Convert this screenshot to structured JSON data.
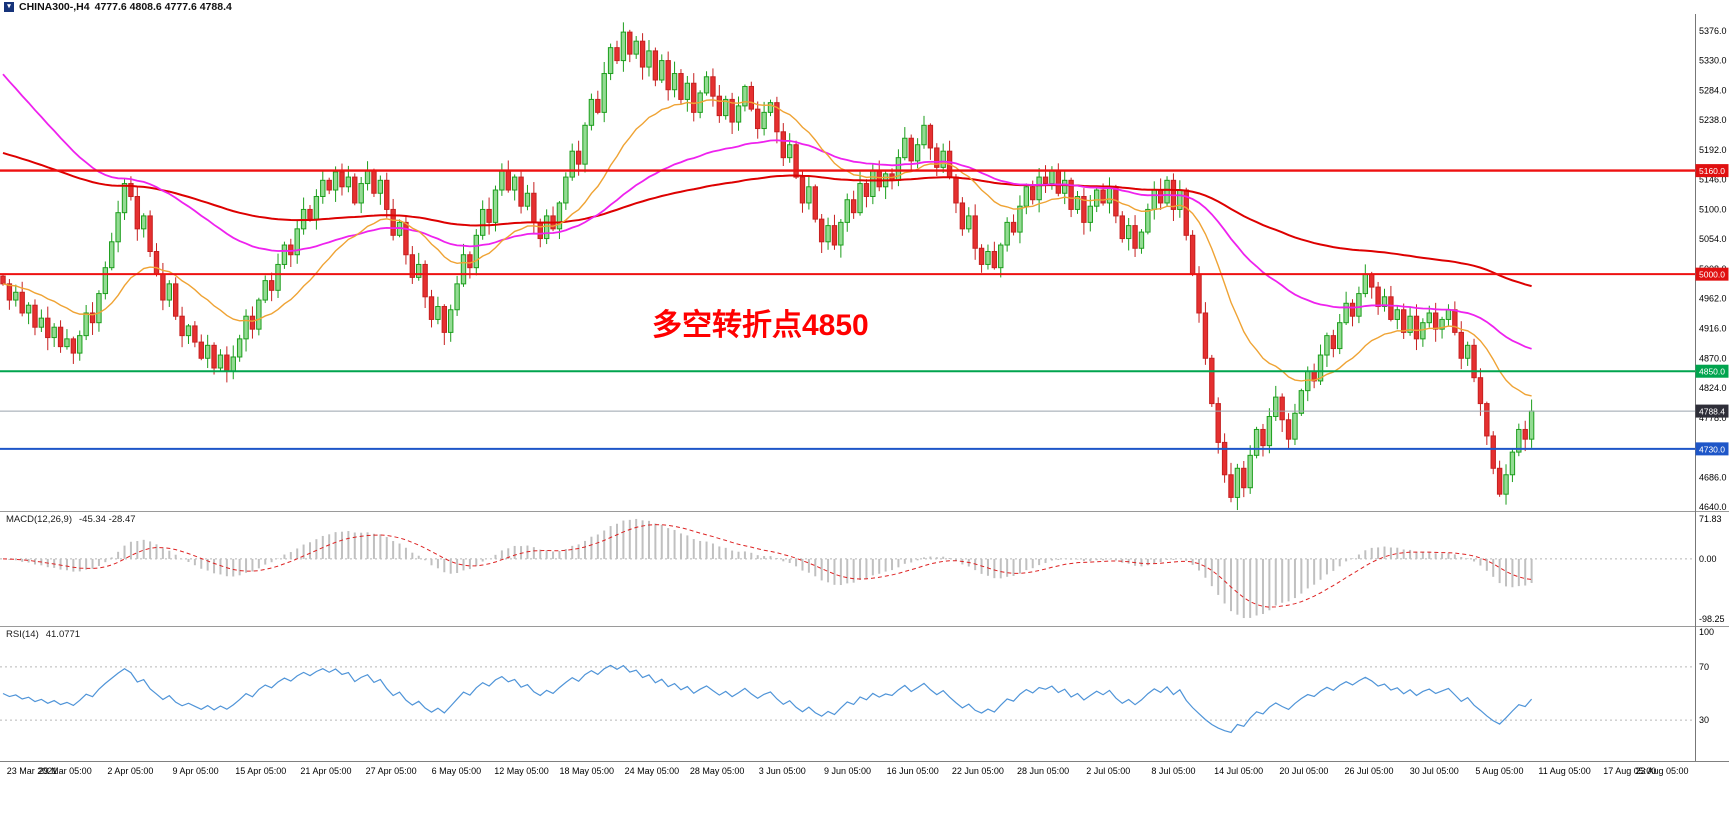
{
  "header": {
    "symbol": "CHINA300-,H4",
    "ohlc": "4777.6 4808.6 4777.6 4788.4"
  },
  "annotation": {
    "text": "多空转折点4850",
    "color": "#ff0000"
  },
  "chart_data": {
    "type": "candlestick",
    "symbol": "CHINA300-",
    "timeframe": "H4",
    "background": "#ffffff",
    "grid": false,
    "y_axis": {
      "range": [
        4634,
        5402
      ],
      "labels": [
        "5376.0",
        "5330.0",
        "5284.0",
        "5238.0",
        "5192.0",
        "5146.0",
        "5100.0",
        "5054.0",
        "5008.0",
        "4962.0",
        "4916.0",
        "4870.0",
        "4824.0",
        "4778.0",
        "4732.0",
        "4686.0",
        "4640.0"
      ]
    },
    "x_labels": [
      "23 Mar 2021",
      "29 Mar 05:00",
      "2 Apr 05:00",
      "9 Apr 05:00",
      "15 Apr 05:00",
      "21 Apr 05:00",
      "27 Apr 05:00",
      "6 May 05:00",
      "12 May 05:00",
      "18 May 05:00",
      "24 May 05:00",
      "28 May 05:00",
      "3 Jun 05:00",
      "9 Jun 05:00",
      "16 Jun 05:00",
      "22 Jun 05:00",
      "28 Jun 05:00",
      "2 Jul 05:00",
      "8 Jul 05:00",
      "14 Jul 05:00",
      "20 Jul 05:00",
      "26 Jul 05:00",
      "30 Jul 05:00",
      "5 Aug 05:00",
      "11 Aug 05:00",
      "17 Aug 05:00",
      "23 Aug 05:00"
    ],
    "note": "closes estimated from pixels; candles derived as open=previous close with small pseudo-random wicks",
    "closes": [
      4985,
      4960,
      4972,
      4940,
      4952,
      4918,
      4932,
      4902,
      4918,
      4888,
      4900,
      4878,
      4905,
      4940,
      4925,
      4970,
      5010,
      5050,
      5095,
      5140,
      5120,
      5070,
      5090,
      5035,
      5000,
      4960,
      4985,
      4935,
      4905,
      4920,
      4895,
      4870,
      4890,
      4855,
      4875,
      4850,
      4872,
      4900,
      4935,
      4915,
      4960,
      4990,
      4975,
      5015,
      5045,
      5030,
      5070,
      5100,
      5085,
      5120,
      5145,
      5130,
      5158,
      5135,
      5150,
      5110,
      5140,
      5160,
      5125,
      5145,
      5100,
      5060,
      5080,
      5030,
      4995,
      5015,
      4965,
      4930,
      4950,
      4910,
      4945,
      4985,
      5030,
      5010,
      5060,
      5100,
      5080,
      5130,
      5160,
      5130,
      5150,
      5105,
      5125,
      5080,
      5055,
      5090,
      5070,
      5110,
      5150,
      5190,
      5170,
      5230,
      5270,
      5250,
      5310,
      5350,
      5330,
      5374,
      5340,
      5360,
      5320,
      5345,
      5300,
      5330,
      5285,
      5310,
      5270,
      5295,
      5250,
      5280,
      5305,
      5275,
      5245,
      5270,
      5235,
      5260,
      5290,
      5255,
      5225,
      5250,
      5265,
      5220,
      5180,
      5200,
      5150,
      5110,
      5135,
      5085,
      5050,
      5075,
      5045,
      5080,
      5115,
      5095,
      5140,
      5120,
      5160,
      5135,
      5155,
      5145,
      5180,
      5210,
      5175,
      5200,
      5230,
      5195,
      5165,
      5190,
      5150,
      5110,
      5070,
      5090,
      5040,
      5015,
      5035,
      5010,
      5045,
      5080,
      5065,
      5105,
      5135,
      5115,
      5150,
      5140,
      5160,
      5125,
      5145,
      5100,
      5120,
      5080,
      5105,
      5130,
      5110,
      5135,
      5090,
      5055,
      5075,
      5040,
      5065,
      5100,
      5130,
      5110,
      5145,
      5100,
      5130,
      5060,
      5000,
      4940,
      4870,
      4800,
      4740,
      4690,
      4655,
      4700,
      4670,
      4720,
      4760,
      4735,
      4780,
      4810,
      4775,
      4745,
      4785,
      4820,
      4850,
      4835,
      4875,
      4905,
      4885,
      4925,
      4955,
      4935,
      4970,
      5000,
      4980,
      4950,
      4965,
      4930,
      4945,
      4910,
      4935,
      4900,
      4925,
      4940,
      4915,
      4930,
      4945,
      4910,
      4870,
      4890,
      4840,
      4800,
      4750,
      4700,
      4660,
      4690,
      4725,
      4760,
      4745,
      4788.4
    ],
    "up_color": "#1c9e1c",
    "up_fill": "#93db93",
    "down_color": "#c62020",
    "down_fill": "#e53030",
    "moving_averages": [
      {
        "period": 150,
        "color": "#dd0000",
        "seed": 5190,
        "width": 2
      },
      {
        "period": 60,
        "color": "#ee22ee",
        "seed": 5320,
        "width": 1.8
      },
      {
        "period": 22,
        "color": "#efa334",
        "seed": 4985,
        "width": 1.4
      }
    ],
    "levels": [
      {
        "price": 5160.0,
        "label": "5160.0",
        "color": "#ee1111",
        "tag_color": "#e01010",
        "width": 2.4
      },
      {
        "price": 5000.0,
        "label": "5000.0",
        "color": "#ee1111",
        "tag_color": "#e01010",
        "width": 2
      },
      {
        "price": 4850.0,
        "label": "4850.0",
        "color": "#00a44e",
        "tag_color": "#00a44e",
        "width": 2
      },
      {
        "price": 4730.0,
        "label": "4730.0",
        "color": "#1e56c8",
        "tag_color": "#1e56c8",
        "width": 2
      }
    ],
    "current_price": {
      "price": 4788.4,
      "label": "4788.4",
      "line_color": "#9aa3ad",
      "tag_color": "#2e2e38"
    },
    "macd": {
      "label": "MACD(12,26,9)",
      "values_text": "-45.34 -28.47",
      "fast": 12,
      "slow": 26,
      "signal": 9,
      "axis_labels": [
        "71.83",
        "0.00",
        "-98.25"
      ],
      "histogram_color": "#c0c0c0",
      "signal_color": "#dd2222"
    },
    "rsi": {
      "label": "RSI(14)",
      "value_text": "41.0771",
      "period": 14,
      "axis_labels": [
        "100",
        "70",
        "30"
      ],
      "levels": [
        70,
        30
      ],
      "line_color": "#4f94d8"
    }
  }
}
